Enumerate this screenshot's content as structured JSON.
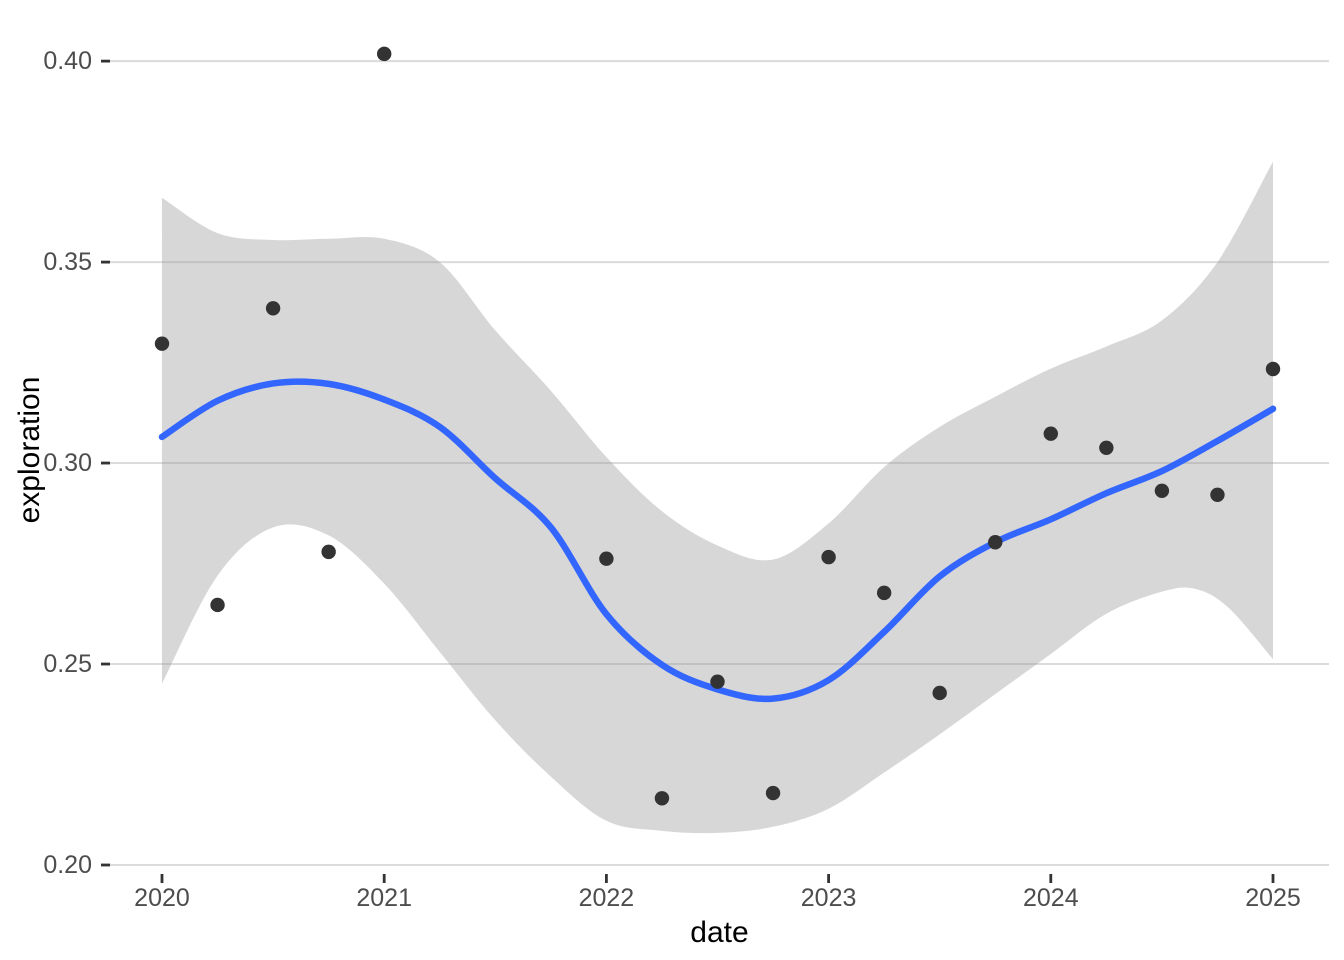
{
  "chart_data": {
    "type": "scatter",
    "title": "",
    "xlabel": "date",
    "ylabel": "exploration",
    "legend": "none",
    "grid": "horizontal-major-only",
    "xlim": [
      2019.766,
      2025.252
    ],
    "ylim": [
      0.19776,
      0.406
    ],
    "x_ticks": [
      2020,
      2021,
      2022,
      2023,
      2024,
      2025
    ],
    "x_tick_labels": [
      "2020",
      "2021",
      "2022",
      "2023",
      "2024",
      "2025"
    ],
    "y_ticks": [
      0.2,
      0.25,
      0.3,
      0.35,
      0.4
    ],
    "y_tick_labels": [
      "0.20",
      "0.25",
      "0.30",
      "0.35",
      "0.40"
    ],
    "points": [
      [
        2020.0,
        0.3297
      ],
      [
        2020.25,
        0.2647
      ],
      [
        2020.5,
        0.3385
      ],
      [
        2020.75,
        0.2779
      ],
      [
        2021.0,
        0.4018
      ],
      [
        2022.0,
        0.2762
      ],
      [
        2022.25,
        0.2166
      ],
      [
        2022.5,
        0.2456
      ],
      [
        2022.75,
        0.2179
      ],
      [
        2023.0,
        0.2766
      ],
      [
        2023.25,
        0.2677
      ],
      [
        2023.5,
        0.2428
      ],
      [
        2023.75,
        0.2803
      ],
      [
        2024.0,
        0.3073
      ],
      [
        2024.25,
        0.3038
      ],
      [
        2024.5,
        0.2931
      ],
      [
        2024.75,
        0.2921
      ],
      [
        2025.0,
        0.3234
      ]
    ],
    "smooth_line": [
      [
        2020.0,
        0.3065
      ],
      [
        2020.25,
        0.3155
      ],
      [
        2020.5,
        0.3198
      ],
      [
        2020.75,
        0.3197
      ],
      [
        2021.0,
        0.3158
      ],
      [
        2021.25,
        0.309
      ],
      [
        2021.5,
        0.2962
      ],
      [
        2021.75,
        0.284
      ],
      [
        2022.0,
        0.2624
      ],
      [
        2022.25,
        0.2498
      ],
      [
        2022.5,
        0.2437
      ],
      [
        2022.75,
        0.2414
      ],
      [
        2023.0,
        0.246
      ],
      [
        2023.25,
        0.258
      ],
      [
        2023.5,
        0.2718
      ],
      [
        2023.75,
        0.2803
      ],
      [
        2024.0,
        0.286
      ],
      [
        2024.25,
        0.2925
      ],
      [
        2024.5,
        0.298
      ],
      [
        2024.75,
        0.3055
      ],
      [
        2025.0,
        0.3135
      ]
    ],
    "ribbon_upper": [
      [
        2020.0,
        0.366
      ],
      [
        2020.25,
        0.3572
      ],
      [
        2020.5,
        0.3555
      ],
      [
        2020.75,
        0.3558
      ],
      [
        2021.0,
        0.3558
      ],
      [
        2021.25,
        0.35
      ],
      [
        2021.5,
        0.333
      ],
      [
        2021.75,
        0.318
      ],
      [
        2022.0,
        0.3015
      ],
      [
        2022.25,
        0.288
      ],
      [
        2022.5,
        0.2795
      ],
      [
        2022.75,
        0.276
      ],
      [
        2023.0,
        0.285
      ],
      [
        2023.25,
        0.299
      ],
      [
        2023.5,
        0.309
      ],
      [
        2023.75,
        0.3165
      ],
      [
        2024.0,
        0.3235
      ],
      [
        2024.25,
        0.329
      ],
      [
        2024.5,
        0.3355
      ],
      [
        2024.75,
        0.35
      ],
      [
        2025.0,
        0.375
      ]
    ],
    "ribbon_lower": [
      [
        2020.0,
        0.2451
      ],
      [
        2020.25,
        0.272
      ],
      [
        2020.5,
        0.284
      ],
      [
        2020.75,
        0.282
      ],
      [
        2021.0,
        0.27
      ],
      [
        2021.25,
        0.253
      ],
      [
        2021.5,
        0.236
      ],
      [
        2021.75,
        0.222
      ],
      [
        2022.0,
        0.211
      ],
      [
        2022.25,
        0.2085
      ],
      [
        2022.5,
        0.208
      ],
      [
        2022.75,
        0.2095
      ],
      [
        2023.0,
        0.214
      ],
      [
        2023.25,
        0.223
      ],
      [
        2023.5,
        0.2325
      ],
      [
        2023.75,
        0.2425
      ],
      [
        2024.0,
        0.2525
      ],
      [
        2024.25,
        0.2625
      ],
      [
        2024.5,
        0.268
      ],
      [
        2024.65,
        0.2687
      ],
      [
        2024.8,
        0.264
      ],
      [
        2025.0,
        0.2512
      ]
    ],
    "colors": {
      "point": "#333333",
      "smooth_line": "#3366FF",
      "ribbon": "rgba(150,150,150,0.38)",
      "gridline": "#DBDBDB",
      "tick_mark": "#333333",
      "tick_text": "#4d4d4d",
      "axis_title_text": "#000000",
      "background": "#ffffff"
    }
  }
}
